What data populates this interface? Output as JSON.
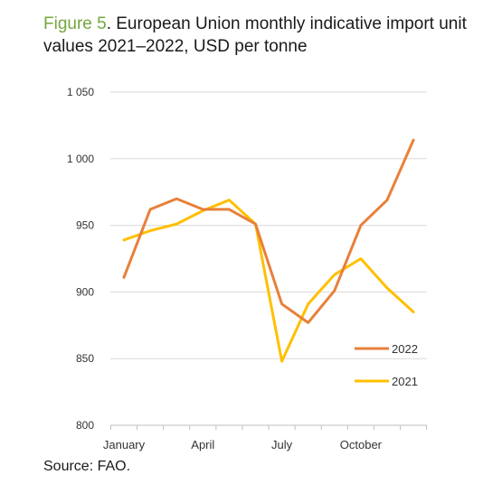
{
  "figure": {
    "title_prefix": "Figure 5",
    "title_rest": ". European Union monthly indicative import unit values 2021–2022, USD per tonne",
    "source": "Source: FAO."
  },
  "colors": {
    "title_prefix": "#74a63c",
    "series_2022": "#e8803a",
    "series_2021": "#ffc000",
    "grid": "#d9d9d9"
  },
  "chart_data": {
    "type": "line",
    "x": [
      1,
      2,
      3,
      4,
      5,
      6,
      7,
      8,
      9,
      10,
      11,
      12
    ],
    "x_tick_labels": [
      {
        "x": 1,
        "label": "January"
      },
      {
        "x": 4,
        "label": "April"
      },
      {
        "x": 7,
        "label": "July"
      },
      {
        "x": 10,
        "label": "October"
      }
    ],
    "y_ticks": [
      {
        "value": 800,
        "label": "800"
      },
      {
        "value": 850,
        "label": "850"
      },
      {
        "value": 900,
        "label": "900"
      },
      {
        "value": 950,
        "label": "950"
      },
      {
        "value": 1000,
        "label": "1 000"
      },
      {
        "value": 1050,
        "label": "1 050"
      }
    ],
    "ylim": [
      800,
      1050
    ],
    "grid": true,
    "legend_position": "bottom-right",
    "series": [
      {
        "name": "2022",
        "color": "#e8803a",
        "values": [
          911,
          962,
          970,
          962,
          962,
          951,
          891,
          877,
          901,
          950,
          969,
          1014
        ]
      },
      {
        "name": "2021",
        "color": "#ffc000",
        "values": [
          939,
          946,
          951,
          961,
          969,
          951,
          848,
          891,
          913,
          925,
          903,
          885
        ]
      }
    ]
  }
}
